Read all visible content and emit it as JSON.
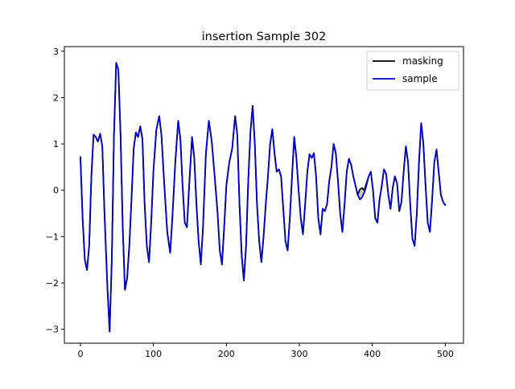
{
  "chart_data": {
    "type": "line",
    "title": "insertion Sample 302",
    "xlabel": "",
    "ylabel": "",
    "xlim": [
      -22,
      525
    ],
    "ylim": [
      -3.3,
      3.1
    ],
    "xticks": [
      0,
      100,
      200,
      300,
      400,
      500
    ],
    "yticks": [
      -3,
      -2,
      -1,
      0,
      1,
      2,
      3
    ],
    "xtick_labels": [
      "0",
      "100",
      "200",
      "300",
      "400",
      "500"
    ],
    "ytick_labels": [
      "−3",
      "−2",
      "−1",
      "0",
      "1",
      "2",
      "3"
    ],
    "legend": {
      "position": "top-right"
    },
    "fill_between": {
      "series": [
        "masking",
        "sample"
      ],
      "color": "#bcbcbc"
    },
    "series": [
      {
        "name": "masking",
        "color": "#000000",
        "points": [
          [
            0,
            0.72
          ],
          [
            3,
            -0.6
          ],
          [
            6,
            -1.5
          ],
          [
            9,
            -1.72
          ],
          [
            12,
            -1.2
          ],
          [
            15,
            0.3
          ],
          [
            18,
            1.2
          ],
          [
            21,
            1.15
          ],
          [
            24,
            1.05
          ],
          [
            27,
            1.22
          ],
          [
            30,
            0.95
          ],
          [
            33,
            -0.5
          ],
          [
            37,
            -2.1
          ],
          [
            40,
            -3.05
          ],
          [
            43,
            -1.5
          ],
          [
            46,
            1.2
          ],
          [
            49,
            2.75
          ],
          [
            52,
            2.6
          ],
          [
            55,
            1.2
          ],
          [
            58,
            -0.8
          ],
          [
            61,
            -2.15
          ],
          [
            64,
            -1.9
          ],
          [
            67,
            -1.2
          ],
          [
            70,
            -0.2
          ],
          [
            73,
            0.9
          ],
          [
            76,
            1.25
          ],
          [
            79,
            1.15
          ],
          [
            82,
            1.38
          ],
          [
            85,
            1.1
          ],
          [
            88,
            -0.3
          ],
          [
            91,
            -1.2
          ],
          [
            94,
            -1.55
          ],
          [
            97,
            -0.7
          ],
          [
            100,
            0.4
          ],
          [
            104,
            1.3
          ],
          [
            108,
            1.6
          ],
          [
            111,
            1.2
          ],
          [
            115,
            0.1
          ],
          [
            119,
            -0.9
          ],
          [
            123,
            -1.35
          ],
          [
            126,
            -0.6
          ],
          [
            130,
            0.6
          ],
          [
            134,
            1.5
          ],
          [
            137,
            1.1
          ],
          [
            140,
            0.1
          ],
          [
            143,
            -0.7
          ],
          [
            146,
            -0.8
          ],
          [
            149,
            0.1
          ],
          [
            153,
            1.15
          ],
          [
            156,
            0.7
          ],
          [
            159,
            -0.3
          ],
          [
            162,
            -1.1
          ],
          [
            165,
            -1.6
          ],
          [
            168,
            -0.8
          ],
          [
            172,
            0.8
          ],
          [
            176,
            1.5
          ],
          [
            180,
            1.05
          ],
          [
            184,
            0.3
          ],
          [
            188,
            -0.5
          ],
          [
            191,
            -1.3
          ],
          [
            194,
            -1.6
          ],
          [
            197,
            -0.8
          ],
          [
            200,
            0.1
          ],
          [
            204,
            0.6
          ],
          [
            208,
            0.9
          ],
          [
            212,
            1.6
          ],
          [
            215,
            1.2
          ],
          [
            218,
            -0.3
          ],
          [
            221,
            -1.4
          ],
          [
            224,
            -1.95
          ],
          [
            227,
            -1.2
          ],
          [
            230,
            0.2
          ],
          [
            233,
            1.25
          ],
          [
            236,
            1.82
          ],
          [
            239,
            1.0
          ],
          [
            242,
            -0.3
          ],
          [
            245,
            -1.1
          ],
          [
            248,
            -1.55
          ],
          [
            251,
            -1.0
          ],
          [
            254,
            -0.3
          ],
          [
            257,
            0.3
          ],
          [
            260,
            1.0
          ],
          [
            263,
            1.32
          ],
          [
            266,
            0.8
          ],
          [
            269,
            0.4
          ],
          [
            272,
            0.45
          ],
          [
            275,
            0.3
          ],
          [
            278,
            -0.4
          ],
          [
            281,
            -1.1
          ],
          [
            284,
            -1.3
          ],
          [
            287,
            -0.6
          ],
          [
            290,
            0.3
          ],
          [
            293,
            1.15
          ],
          [
            296,
            0.7
          ],
          [
            299,
            0.0
          ],
          [
            302,
            -0.6
          ],
          [
            305,
            -0.95
          ],
          [
            308,
            -0.3
          ],
          [
            311,
            0.4
          ],
          [
            314,
            0.78
          ],
          [
            317,
            0.7
          ],
          [
            320,
            0.8
          ],
          [
            323,
            0.3
          ],
          [
            326,
            -0.6
          ],
          [
            329,
            -0.95
          ],
          [
            332,
            -0.4
          ],
          [
            335,
            -0.45
          ],
          [
            338,
            -0.3
          ],
          [
            341,
            0.2
          ],
          [
            344,
            0.5
          ],
          [
            347,
            1.0
          ],
          [
            350,
            0.8
          ],
          [
            353,
            0.2
          ],
          [
            356,
            -0.5
          ],
          [
            359,
            -0.9
          ],
          [
            362,
            -0.3
          ],
          [
            365,
            0.4
          ],
          [
            368,
            0.68
          ],
          [
            371,
            0.55
          ],
          [
            374,
            0.3
          ],
          [
            377,
            0.1
          ],
          [
            380,
            -0.1
          ],
          [
            383,
            0.02
          ],
          [
            386,
            0.05
          ],
          [
            389,
            0.0
          ],
          [
            392,
            0.15
          ],
          [
            395,
            0.3
          ],
          [
            398,
            0.4
          ],
          [
            401,
            0.0
          ],
          [
            404,
            -0.6
          ],
          [
            407,
            -0.7
          ],
          [
            410,
            -0.2
          ],
          [
            413,
            0.1
          ],
          [
            416,
            0.45
          ],
          [
            419,
            0.35
          ],
          [
            422,
            -0.1
          ],
          [
            425,
            -0.4
          ],
          [
            428,
            0.05
          ],
          [
            431,
            0.3
          ],
          [
            434,
            0.15
          ],
          [
            437,
            -0.45
          ],
          [
            440,
            -0.25
          ],
          [
            443,
            0.4
          ],
          [
            446,
            0.95
          ],
          [
            449,
            0.6
          ],
          [
            452,
            -0.3
          ],
          [
            455,
            -1.05
          ],
          [
            458,
            -1.2
          ],
          [
            461,
            -0.5
          ],
          [
            464,
            0.6
          ],
          [
            467,
            1.45
          ],
          [
            470,
            1.0
          ],
          [
            473,
            0.1
          ],
          [
            476,
            -0.7
          ],
          [
            479,
            -0.9
          ],
          [
            482,
            -0.2
          ],
          [
            485,
            0.6
          ],
          [
            488,
            0.88
          ],
          [
            491,
            0.4
          ],
          [
            494,
            -0.1
          ],
          [
            497,
            -0.25
          ],
          [
            500,
            -0.32
          ]
        ]
      },
      {
        "name": "sample",
        "color": "#0000cc",
        "points": [
          [
            0,
            0.72
          ],
          [
            3,
            -0.6
          ],
          [
            6,
            -1.5
          ],
          [
            9,
            -1.72
          ],
          [
            12,
            -1.2
          ],
          [
            15,
            0.3
          ],
          [
            18,
            1.2
          ],
          [
            21,
            1.15
          ],
          [
            24,
            1.05
          ],
          [
            27,
            1.22
          ],
          [
            30,
            0.95
          ],
          [
            33,
            -0.5
          ],
          [
            37,
            -2.1
          ],
          [
            40,
            -3.05
          ],
          [
            43,
            -1.5
          ],
          [
            46,
            1.2
          ],
          [
            49,
            2.75
          ],
          [
            52,
            2.6
          ],
          [
            55,
            1.2
          ],
          [
            58,
            -0.8
          ],
          [
            61,
            -2.15
          ],
          [
            64,
            -1.9
          ],
          [
            67,
            -1.2
          ],
          [
            70,
            -0.2
          ],
          [
            73,
            0.9
          ],
          [
            76,
            1.25
          ],
          [
            79,
            1.15
          ],
          [
            82,
            1.38
          ],
          [
            85,
            1.1
          ],
          [
            88,
            -0.3
          ],
          [
            91,
            -1.2
          ],
          [
            94,
            -1.55
          ],
          [
            97,
            -0.7
          ],
          [
            100,
            0.4
          ],
          [
            104,
            1.3
          ],
          [
            108,
            1.6
          ],
          [
            111,
            1.2
          ],
          [
            115,
            0.1
          ],
          [
            119,
            -0.9
          ],
          [
            123,
            -1.35
          ],
          [
            126,
            -0.6
          ],
          [
            130,
            0.6
          ],
          [
            134,
            1.5
          ],
          [
            137,
            1.1
          ],
          [
            140,
            0.1
          ],
          [
            143,
            -0.7
          ],
          [
            146,
            -0.8
          ],
          [
            149,
            0.1
          ],
          [
            153,
            1.15
          ],
          [
            156,
            0.7
          ],
          [
            159,
            -0.3
          ],
          [
            162,
            -1.1
          ],
          [
            165,
            -1.6
          ],
          [
            168,
            -0.8
          ],
          [
            172,
            0.8
          ],
          [
            176,
            1.5
          ],
          [
            180,
            1.05
          ],
          [
            184,
            0.3
          ],
          [
            188,
            -0.5
          ],
          [
            191,
            -1.3
          ],
          [
            194,
            -1.6
          ],
          [
            197,
            -0.8
          ],
          [
            200,
            0.1
          ],
          [
            204,
            0.6
          ],
          [
            208,
            0.9
          ],
          [
            212,
            1.6
          ],
          [
            215,
            1.2
          ],
          [
            218,
            -0.3
          ],
          [
            221,
            -1.4
          ],
          [
            224,
            -1.95
          ],
          [
            227,
            -1.2
          ],
          [
            230,
            0.2
          ],
          [
            233,
            1.25
          ],
          [
            236,
            1.82
          ],
          [
            239,
            1.0
          ],
          [
            242,
            -0.3
          ],
          [
            245,
            -1.1
          ],
          [
            248,
            -1.55
          ],
          [
            251,
            -1.0
          ],
          [
            254,
            -0.3
          ],
          [
            257,
            0.3
          ],
          [
            260,
            1.0
          ],
          [
            263,
            1.32
          ],
          [
            266,
            0.8
          ],
          [
            269,
            0.4
          ],
          [
            272,
            0.45
          ],
          [
            275,
            0.3
          ],
          [
            278,
            -0.4
          ],
          [
            281,
            -1.1
          ],
          [
            284,
            -1.3
          ],
          [
            287,
            -0.6
          ],
          [
            290,
            0.3
          ],
          [
            293,
            1.15
          ],
          [
            296,
            0.7
          ],
          [
            299,
            0.0
          ],
          [
            302,
            -0.6
          ],
          [
            305,
            -0.95
          ],
          [
            308,
            -0.3
          ],
          [
            311,
            0.4
          ],
          [
            314,
            0.78
          ],
          [
            317,
            0.7
          ],
          [
            320,
            0.8
          ],
          [
            323,
            0.3
          ],
          [
            326,
            -0.6
          ],
          [
            329,
            -0.95
          ],
          [
            332,
            -0.4
          ],
          [
            335,
            -0.45
          ],
          [
            338,
            -0.3
          ],
          [
            341,
            0.2
          ],
          [
            344,
            0.5
          ],
          [
            347,
            1.0
          ],
          [
            350,
            0.8
          ],
          [
            353,
            0.2
          ],
          [
            356,
            -0.5
          ],
          [
            359,
            -0.9
          ],
          [
            362,
            -0.3
          ],
          [
            365,
            0.4
          ],
          [
            368,
            0.68
          ],
          [
            371,
            0.55
          ],
          [
            374,
            0.3
          ],
          [
            377,
            0.1
          ],
          [
            380,
            -0.1
          ],
          [
            383,
            -0.2
          ],
          [
            386,
            -0.15
          ],
          [
            389,
            -0.05
          ],
          [
            392,
            0.1
          ],
          [
            395,
            0.3
          ],
          [
            398,
            0.4
          ],
          [
            401,
            0.0
          ],
          [
            404,
            -0.6
          ],
          [
            407,
            -0.7
          ],
          [
            410,
            -0.2
          ],
          [
            413,
            0.1
          ],
          [
            416,
            0.45
          ],
          [
            419,
            0.35
          ],
          [
            422,
            -0.1
          ],
          [
            425,
            -0.4
          ],
          [
            428,
            0.05
          ],
          [
            431,
            0.3
          ],
          [
            434,
            0.15
          ],
          [
            437,
            -0.45
          ],
          [
            440,
            -0.25
          ],
          [
            443,
            0.4
          ],
          [
            446,
            0.95
          ],
          [
            449,
            0.6
          ],
          [
            452,
            -0.3
          ],
          [
            455,
            -1.05
          ],
          [
            458,
            -1.2
          ],
          [
            461,
            -0.5
          ],
          [
            464,
            0.6
          ],
          [
            467,
            1.45
          ],
          [
            470,
            1.0
          ],
          [
            473,
            0.1
          ],
          [
            476,
            -0.7
          ],
          [
            479,
            -0.9
          ],
          [
            482,
            -0.2
          ],
          [
            485,
            0.6
          ],
          [
            488,
            0.88
          ],
          [
            491,
            0.4
          ],
          [
            494,
            -0.1
          ],
          [
            497,
            -0.25
          ],
          [
            500,
            -0.32
          ]
        ]
      }
    ]
  }
}
